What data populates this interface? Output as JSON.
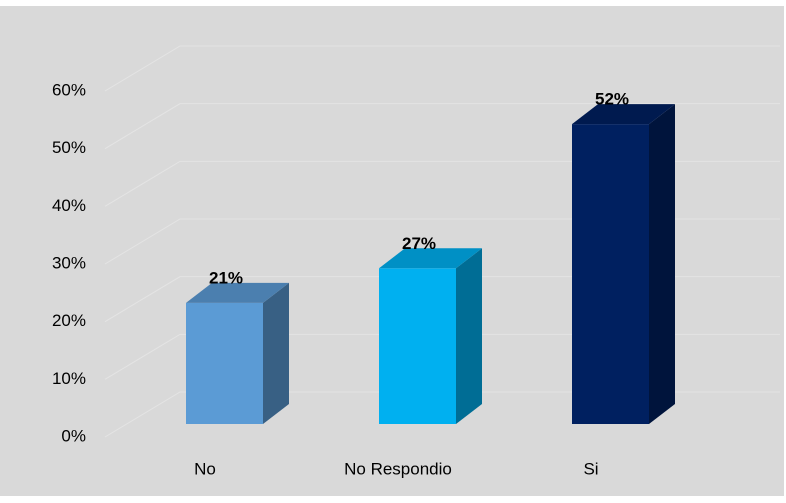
{
  "chart_data": {
    "type": "bar3d",
    "categories": [
      "No",
      "No Respondio",
      "Si"
    ],
    "values": [
      21,
      27,
      52
    ],
    "value_labels": [
      "21%",
      "27%",
      "52%"
    ],
    "colors": [
      "#5b9bd5",
      "#00b0f0",
      "#002060"
    ],
    "ylim": [
      0,
      60
    ],
    "yticks": [
      {
        "value": 0,
        "label": "0%"
      },
      {
        "value": 10,
        "label": "10%"
      },
      {
        "value": 20,
        "label": "20%"
      },
      {
        "value": 30,
        "label": "30%"
      },
      {
        "value": 40,
        "label": "40%"
      },
      {
        "value": 50,
        "label": "50%"
      },
      {
        "value": 60,
        "label": "60%"
      }
    ],
    "grid": true
  }
}
